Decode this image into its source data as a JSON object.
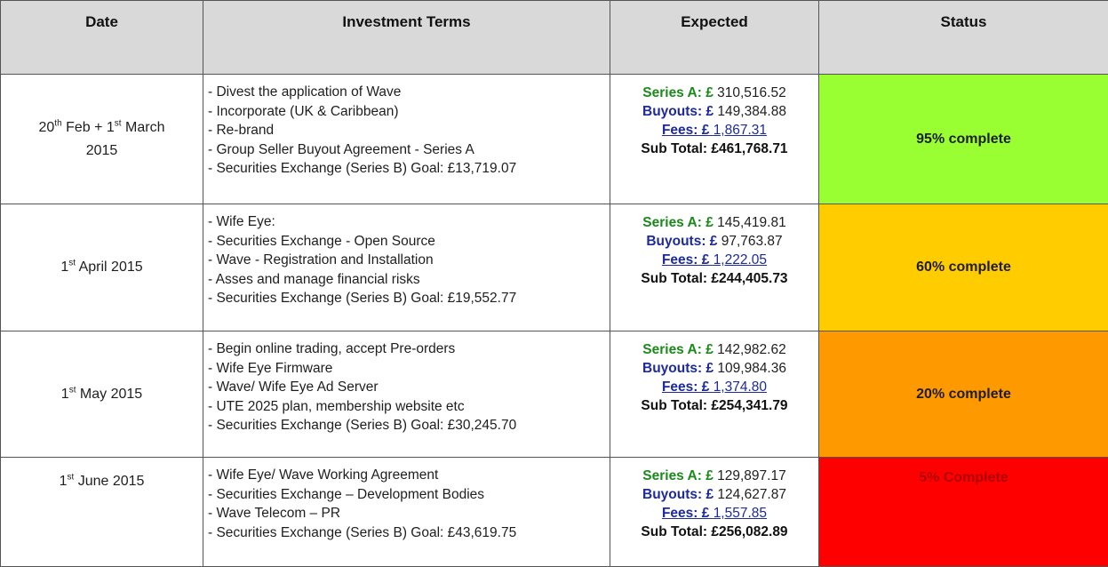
{
  "headers": [
    "Date",
    "Investment Terms",
    "Expected",
    "Status"
  ],
  "expected_labels": {
    "series_a": "Series A: £",
    "buyouts": "Buyouts: £",
    "fees": "Fees: £",
    "sub_total": "Sub Total:"
  },
  "rows": [
    {
      "date": {
        "d1": "20",
        "s1": "th",
        "t1": " Feb  + 1",
        "s2": "st",
        "t2": " March",
        "line2": "2015"
      },
      "terms": [
        "- Divest the application of Wave",
        "- Incorporate (UK & Caribbean)",
        "- Re-brand",
        "- Group Seller Buyout Agreement - Series A",
        "- Securities Exchange (Series B) Goal: £13,719.07"
      ],
      "expected": {
        "series_a": "310,516.52",
        "buyouts": "149,384.88",
        "fees": "1,867.31",
        "sub_total": "£461,768.71"
      },
      "status": {
        "label": "95% complete",
        "color": "#99ff33",
        "text_color": "#1e1e1e"
      }
    },
    {
      "date": {
        "d1": "1",
        "s1": "st",
        "t1": " April 2015"
      },
      "terms": [
        "- Wife Eye:",
        "- Securities Exchange - Open Source",
        "- Wave - Registration and Installation",
        "- Asses and manage financial risks",
        "- Securities Exchange (Series B) Goal: £19,552.77"
      ],
      "expected": {
        "series_a": "145,419.81",
        "buyouts": "97,763.87",
        "fees": "1,222.05",
        "sub_total": "£244,405.73"
      },
      "status": {
        "label": "60% complete",
        "color": "#ffcc00",
        "text_color": "#1e1e1e"
      }
    },
    {
      "date": {
        "d1": "1",
        "s1": "st",
        "t1": " May 2015"
      },
      "terms": [
        "- Begin online trading, accept Pre-orders",
        "- Wife Eye Firmware",
        "- Wave/ Wife Eye Ad Server",
        "- UTE 2025 plan, membership website etc",
        "- Securities Exchange (Series B) Goal: £30,245.70"
      ],
      "expected": {
        "series_a": "142,982.62",
        "buyouts": "109,984.36",
        "fees": "1,374.80",
        "sub_total": "£254,341.79"
      },
      "status": {
        "label": "20% complete",
        "color": "#ff9900",
        "text_color": "#1e1e1e"
      }
    },
    {
      "date": {
        "d1": "1",
        "s1": "st",
        "t1": " June 2015"
      },
      "terms": [
        "- Wife Eye/ Wave Working Agreement",
        "- Securities Exchange – Development Bodies",
        "- Wave Telecom – PR",
        "- Securities Exchange (Series B) Goal: £43,619.75"
      ],
      "expected": {
        "series_a": "129,897.17",
        "buyouts": "124,627.87",
        "fees": "1,557.85",
        "sub_total": "£256,082.89"
      },
      "status": {
        "label": "5% Complete",
        "color": "#ff0000",
        "text_color": "#b00000"
      }
    }
  ]
}
